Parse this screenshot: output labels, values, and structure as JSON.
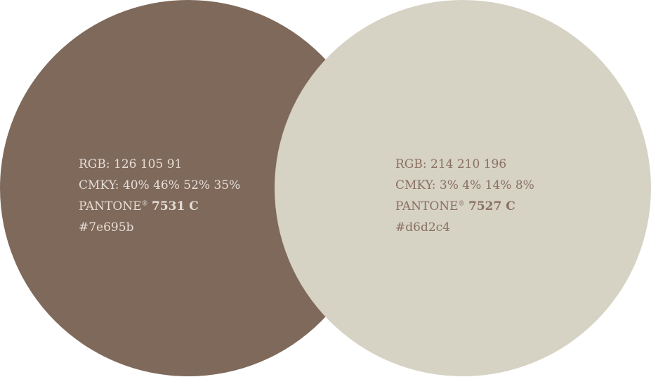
{
  "swatches": [
    {
      "color": "#7e695b",
      "text_color": "#e6ddd6",
      "rgb": "RGB: 126 105 91",
      "cmyk": "CMKY: 40% 46% 52% 35%",
      "pantone_label": "PANTONE",
      "registered": "®",
      "pantone_code": "7531 C",
      "hex": "#7e695b"
    },
    {
      "color": "#d6d2c4",
      "text_color": "#8a7064",
      "rgb": "RGB: 214 210 196",
      "cmyk": "CMKY: 3% 4% 14% 8%",
      "pantone_label": "PANTONE",
      "registered": "®",
      "pantone_code": "7527 C",
      "hex": "#d6d2c4"
    }
  ]
}
